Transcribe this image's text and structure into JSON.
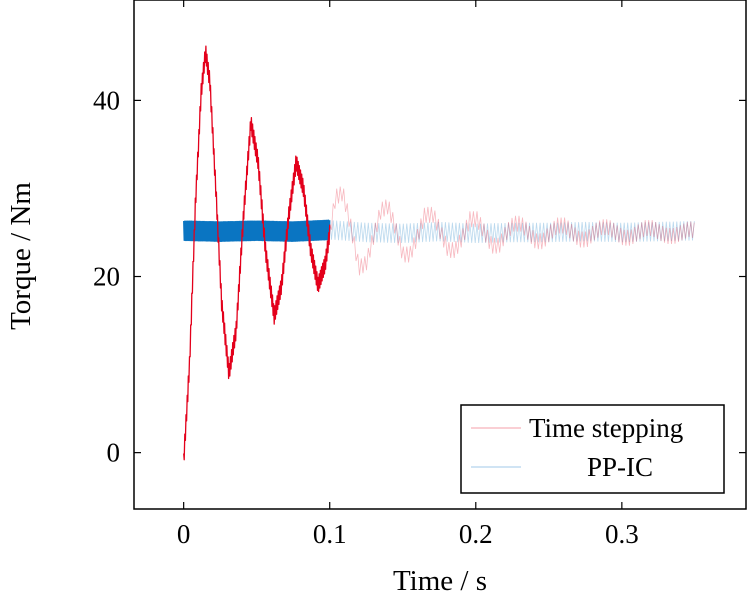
{
  "chart_data": {
    "type": "line",
    "title": "",
    "xlabel": "Time / s",
    "ylabel": "Torque / Nm",
    "xlim": [
      -0.034,
      0.385
    ],
    "ylim": [
      -6.4,
      51.4
    ],
    "xticks": [
      0,
      0.1,
      0.2,
      0.3
    ],
    "xtick_labels": [
      "0",
      "0.1",
      "0.2",
      "0.3"
    ],
    "yticks": [
      0,
      20,
      40
    ],
    "ytick_labels": [
      "0",
      "20",
      "40"
    ],
    "grid": false,
    "legend_position": "bottom-right",
    "series": [
      {
        "name": "Time stepping",
        "color": "#e3001b",
        "style": "bold until t = 0.1 s, then faded",
        "ripple_amplitude": 0.9,
        "x": [
          0,
          0.004,
          0.008,
          0.012,
          0.015,
          0.018,
          0.022,
          0.026,
          0.031,
          0.036,
          0.041,
          0.046,
          0.051,
          0.056,
          0.062,
          0.067,
          0.072,
          0.077,
          0.082,
          0.087,
          0.092,
          0.097,
          0.1,
          0.104,
          0.109,
          0.114,
          0.12,
          0.125,
          0.13,
          0.135,
          0.14,
          0.145,
          0.15,
          0.155,
          0.16,
          0.165,
          0.171,
          0.176,
          0.181,
          0.186,
          0.191,
          0.196,
          0.201,
          0.206,
          0.211,
          0.216,
          0.221,
          0.226,
          0.231,
          0.236,
          0.241,
          0.246,
          0.251,
          0.256,
          0.261,
          0.266,
          0.271,
          0.276,
          0.281,
          0.286,
          0.291,
          0.296,
          0.301,
          0.306,
          0.311,
          0.316,
          0.321,
          0.326,
          0.331,
          0.336,
          0.341,
          0.346,
          0.35
        ],
        "y": [
          -1,
          10,
          28,
          41,
          45.5,
          42,
          30,
          17,
          9,
          14,
          27,
          37.5,
          33,
          23,
          15.5,
          19,
          27,
          33,
          30,
          23,
          19,
          21.5,
          25,
          29,
          29.5,
          26,
          21,
          21.5,
          24.5,
          27.5,
          28,
          25.5,
          22.5,
          22.5,
          24.5,
          27,
          27,
          25,
          23,
          23,
          24.5,
          26.5,
          26.5,
          25,
          23.5,
          23.5,
          25,
          26,
          26,
          25,
          24,
          24,
          25,
          25.8,
          25.8,
          25,
          24.2,
          24.2,
          25,
          25.6,
          25.6,
          25,
          24.4,
          24.4,
          25,
          25.5,
          25.5,
          25,
          24.6,
          24.6,
          25,
          25.4,
          25.2
        ]
      },
      {
        "name": "PP-IC",
        "color": "#0a75c2",
        "style": "bold until t = 0.1 s, then faded",
        "ripple_amplitude": 1.1,
        "x": [
          0,
          0.025,
          0.05,
          0.075,
          0.1,
          0.125,
          0.15,
          0.175,
          0.2,
          0.225,
          0.25,
          0.275,
          0.3,
          0.325,
          0.35
        ],
        "y": [
          25.2,
          25.1,
          25.2,
          25.1,
          25.3,
          25.0,
          24.9,
          25.1,
          24.9,
          25.0,
          25.0,
          25.1,
          25.0,
          25.1,
          25.2
        ]
      }
    ]
  }
}
